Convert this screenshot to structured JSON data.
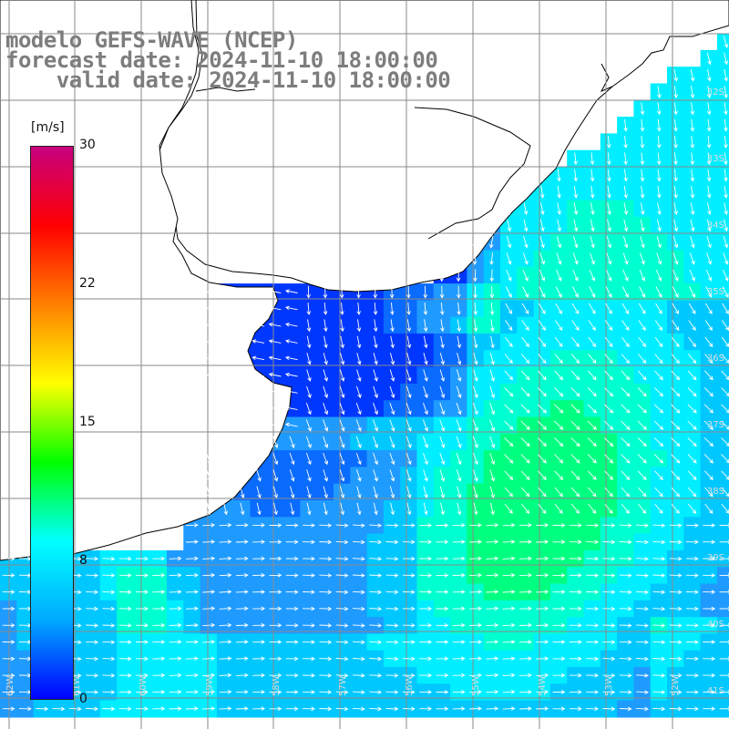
{
  "title": {
    "line1": "modelo GEFS-WAVE (NCEP)",
    "line2": "forecast date: 2024-11-10 18:00:00",
    "line3": "    valid date: 2024-11-10 18:00:00"
  },
  "colorbar": {
    "unit": "[m/s]",
    "ticks": [
      "30",
      "22",
      "15",
      "8",
      "0"
    ],
    "colors": [
      "#0000ff",
      "#00aaff",
      "#00ffff",
      "#00ff00",
      "#ffff00",
      "#ff8000",
      "#ff0000",
      "#c80080"
    ]
  },
  "map": {
    "lat_labels": [
      "32S",
      "33S",
      "34S",
      "35S",
      "36S",
      "37S",
      "38S",
      "39S",
      "40S",
      "41S"
    ],
    "lon_labels": [
      "62W",
      "61W",
      "60W",
      "59W",
      "58W",
      "57W",
      "56W",
      "55W",
      "54W",
      "53W",
      "52W"
    ],
    "palette": {
      "deep_blue": "#0037ff",
      "blue": "#0a6bff",
      "mid_blue": "#1f9bff",
      "light_blue": "#00c8ff",
      "cyan": "#00eeff",
      "aqua": "#00ffd0",
      "green": "#00ff80",
      "land": "#ffffff",
      "grid": "#8a8a8a",
      "arrow": "#ffffff"
    }
  }
}
